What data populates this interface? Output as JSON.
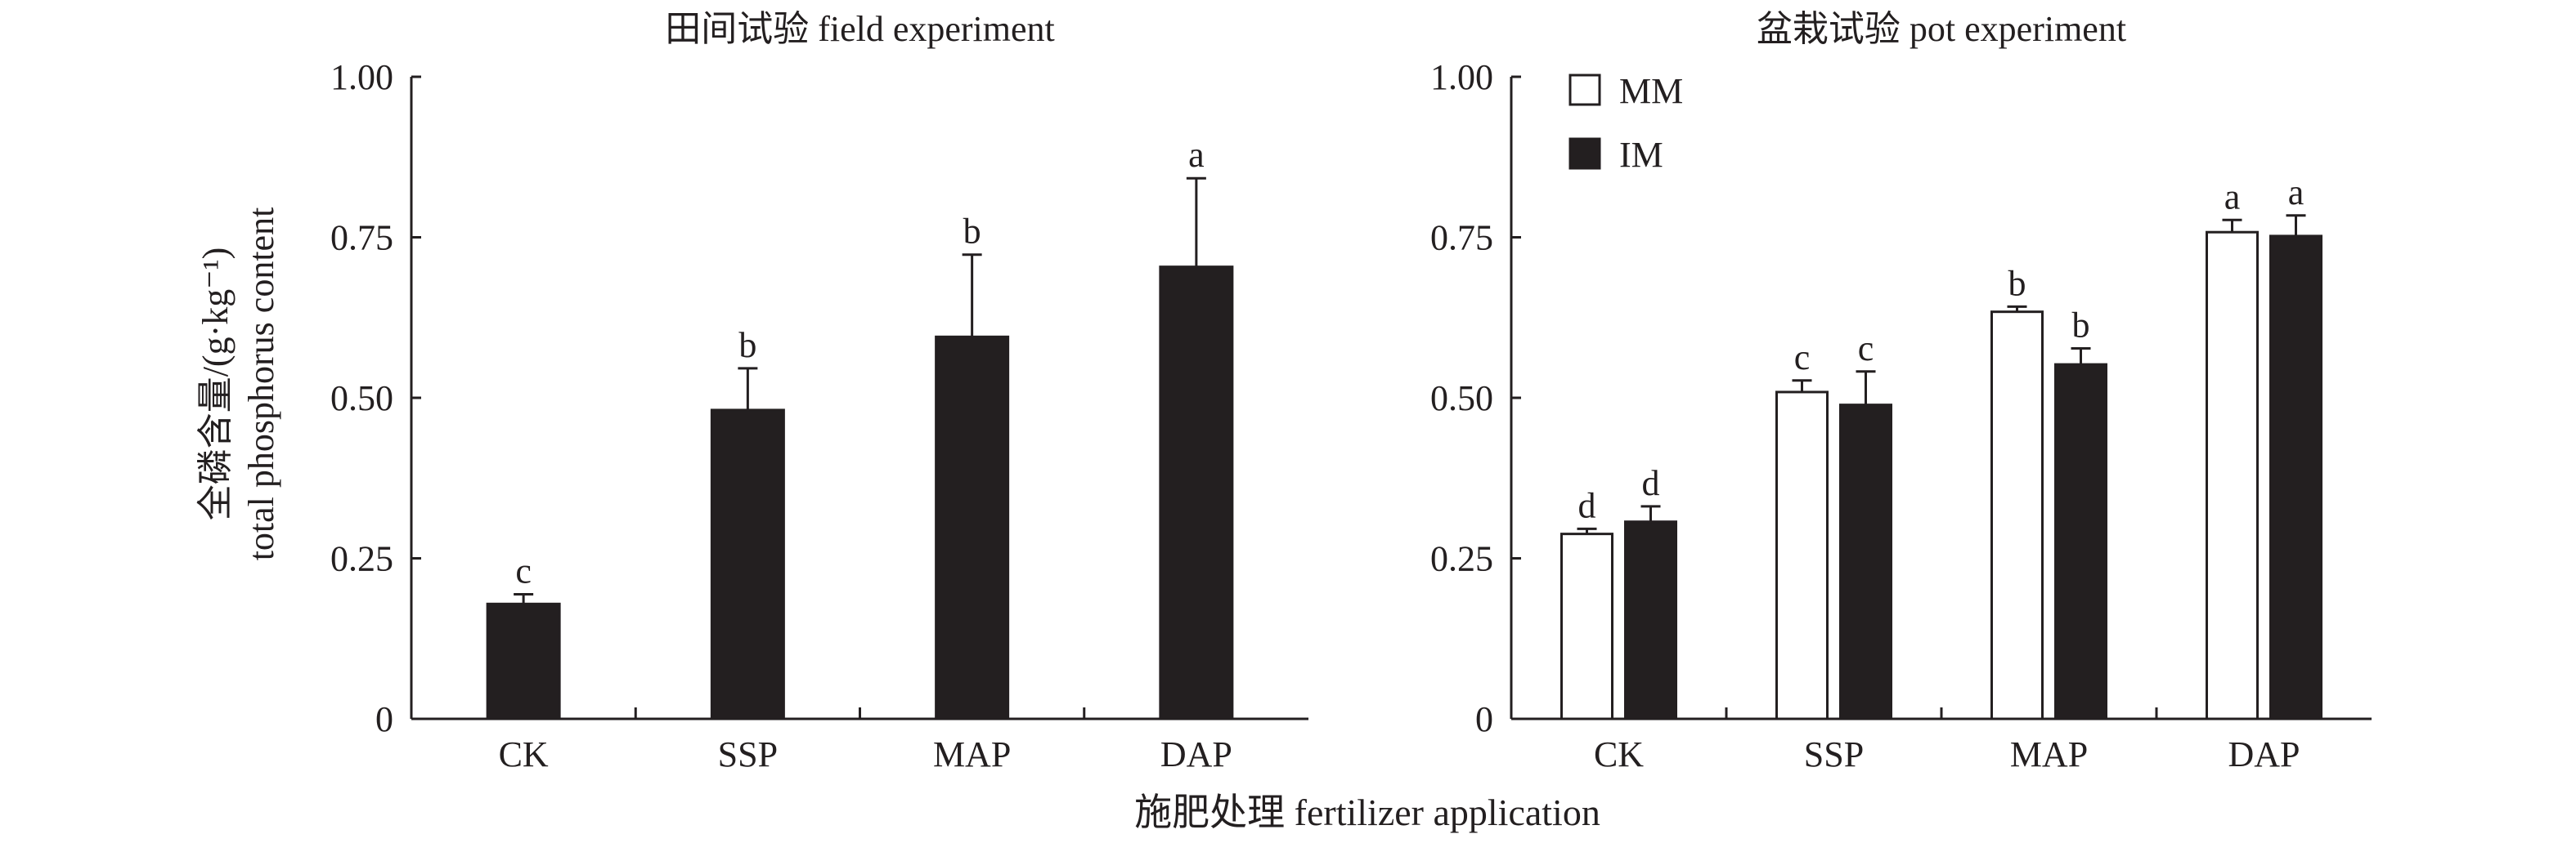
{
  "chart_data": [
    {
      "type": "bar",
      "title": "田间试验 field experiment",
      "categories": [
        "CK",
        "SSP",
        "MAP",
        "DAP"
      ],
      "ylim": [
        0,
        1.0
      ],
      "yticks": [
        "0",
        "0.25",
        "0.50",
        "0.75",
        "1.00"
      ],
      "ytick_values": [
        0,
        0.25,
        0.5,
        0.75,
        1.0
      ],
      "series": [
        {
          "name": "",
          "color": "#231f20",
          "values": [
            0.179,
            0.481,
            0.595,
            0.704
          ],
          "errors": [
            0.015,
            0.065,
            0.128,
            0.138
          ],
          "letters": [
            "c",
            "b",
            "b",
            "a"
          ]
        }
      ]
    },
    {
      "type": "bar",
      "title": "盆栽试验 pot experiment",
      "categories": [
        "CK",
        "SSP",
        "MAP",
        "DAP"
      ],
      "ylim": [
        0,
        1.0
      ],
      "yticks": [
        "0",
        "0.25",
        "0.50",
        "0.75",
        "1.00"
      ],
      "ytick_values": [
        0,
        0.25,
        0.5,
        0.75,
        1.0
      ],
      "legend_position": "top-left",
      "series": [
        {
          "name": "MM",
          "color": "#ffffff",
          "values": [
            0.288,
            0.509,
            0.634,
            0.758
          ],
          "errors": [
            0.008,
            0.018,
            0.008,
            0.019
          ],
          "letters": [
            "d",
            "c",
            "b",
            "a"
          ]
        },
        {
          "name": "IM",
          "color": "#231f20",
          "values": [
            0.307,
            0.489,
            0.552,
            0.752
          ],
          "errors": [
            0.024,
            0.052,
            0.025,
            0.032
          ],
          "letters": [
            "d",
            "c",
            "b",
            "a"
          ]
        }
      ]
    }
  ],
  "ylabel_cn": "全磷含量/(g·kg⁻¹)",
  "ylabel_en": "total phosphorus content",
  "xlabel": "施肥处理 fertilizer application"
}
